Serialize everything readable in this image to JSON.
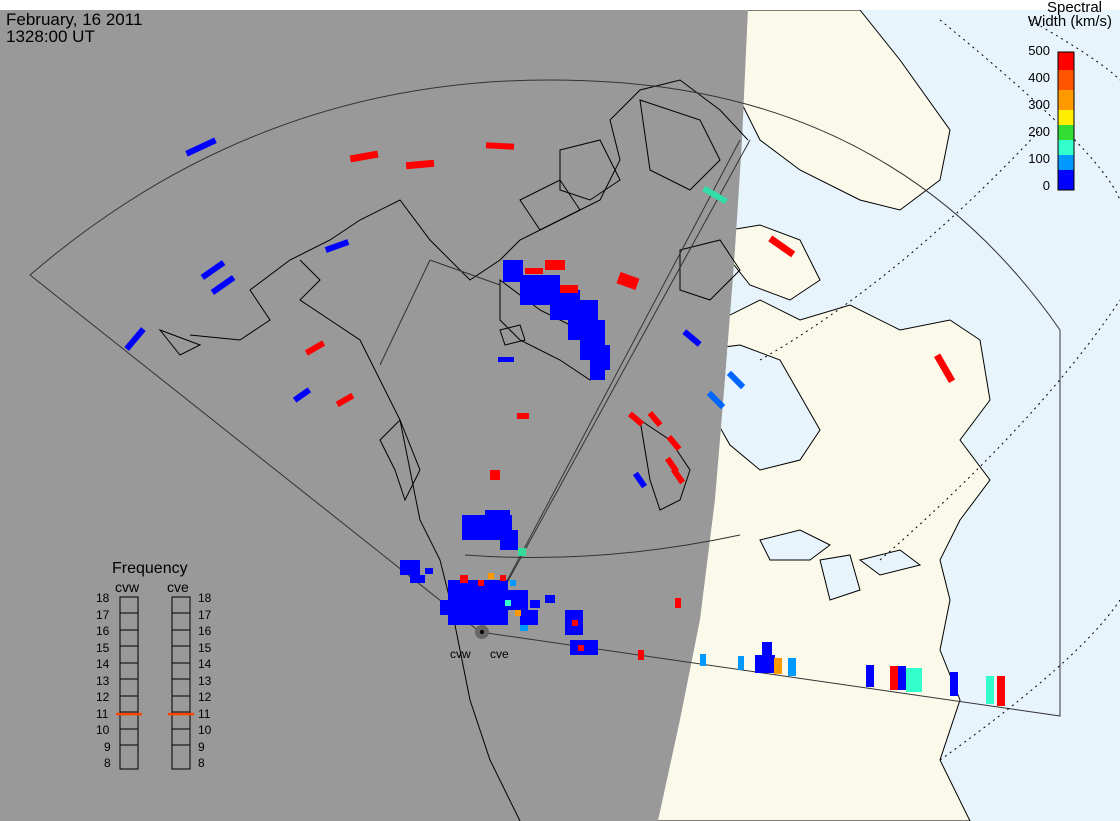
{
  "header": {
    "date": "February, 16 2011",
    "time": "1328:00 UT"
  },
  "legend": {
    "title_line1": "Spectral",
    "title_line2": "Width (km/s)",
    "ticks": [
      "500",
      "400",
      "300",
      "200",
      "100",
      "0"
    ],
    "range": [
      0,
      500
    ],
    "colors": [
      "#ff0000",
      "#ff9900",
      "#ffff00",
      "#33dd33",
      "#33ffcc",
      "#0099ff",
      "#0000ff"
    ]
  },
  "frequency": {
    "title": "Frequency",
    "radars": [
      {
        "name": "cvw",
        "value": 10.9
      },
      {
        "name": "cve",
        "value": 10.9
      }
    ],
    "ticks": [
      "18",
      "17",
      "16",
      "15",
      "14",
      "13",
      "12",
      "11",
      "10",
      "9",
      "8"
    ],
    "range": [
      8,
      18
    ],
    "indicator_color": "#ff4400"
  },
  "radar_labels": {
    "west": "cvw",
    "east": "cve"
  },
  "colors": {
    "night": "#999999",
    "land_day": "#fbf9ea",
    "ocean_day": "#e8f4fc",
    "coast": "#000000"
  }
}
